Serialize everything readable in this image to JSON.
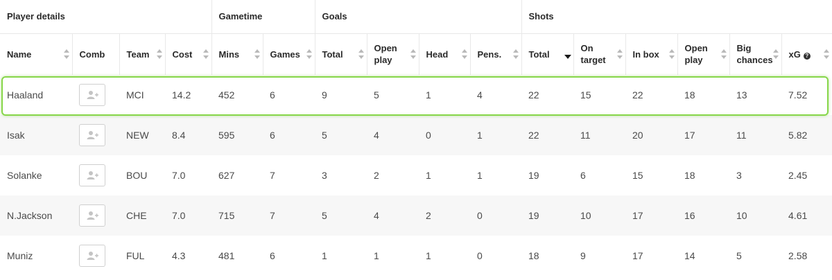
{
  "groups": {
    "player_details": "Player details",
    "gametime": "Gametime",
    "goals": "Goals",
    "shots": "Shots"
  },
  "columns": {
    "name": "Name",
    "comb": "Comb",
    "team": "Team",
    "cost": "Cost",
    "mins": "Mins",
    "games": "Games",
    "goals_total": "Total",
    "goals_open_play_1": "Open",
    "goals_open_play_2": "play",
    "head": "Head",
    "pens": "Pens.",
    "shots_total": "Total",
    "on_target_1": "On",
    "on_target_2": "target",
    "in_box": "In box",
    "shots_open_play_1": "Open",
    "shots_open_play_2": "play",
    "big_chances_1": "Big",
    "big_chances_2": "chances",
    "xg": "xG",
    "xg_help": "?"
  },
  "sorted_column": "shots_total",
  "highlighted_row": "Haaland",
  "icons": {
    "comb_button": "add-user-icon",
    "sort": "sort-arrows-icon",
    "help": "help-circle-icon"
  },
  "colors": {
    "highlight": "#87d64a",
    "stripe": "#f7f7f7"
  },
  "rows": [
    {
      "name": "Haaland",
      "team": "MCI",
      "cost": "14.2",
      "mins": "452",
      "games": "6",
      "goals_total": "9",
      "goals_open_play": "5",
      "head": "1",
      "pens": "4",
      "shots_total": "22",
      "on_target": "15",
      "in_box": "22",
      "shots_open_play": "18",
      "big_chances": "13",
      "xg": "7.52"
    },
    {
      "name": "Isak",
      "team": "NEW",
      "cost": "8.4",
      "mins": "595",
      "games": "6",
      "goals_total": "5",
      "goals_open_play": "4",
      "head": "0",
      "pens": "1",
      "shots_total": "22",
      "on_target": "11",
      "in_box": "20",
      "shots_open_play": "17",
      "big_chances": "11",
      "xg": "5.82"
    },
    {
      "name": "Solanke",
      "team": "BOU",
      "cost": "7.0",
      "mins": "627",
      "games": "7",
      "goals_total": "3",
      "goals_open_play": "2",
      "head": "1",
      "pens": "1",
      "shots_total": "19",
      "on_target": "6",
      "in_box": "15",
      "shots_open_play": "18",
      "big_chances": "3",
      "xg": "2.45"
    },
    {
      "name": "N.Jackson",
      "team": "CHE",
      "cost": "7.0",
      "mins": "715",
      "games": "7",
      "goals_total": "5",
      "goals_open_play": "4",
      "head": "2",
      "pens": "0",
      "shots_total": "19",
      "on_target": "10",
      "in_box": "17",
      "shots_open_play": "16",
      "big_chances": "10",
      "xg": "4.61"
    },
    {
      "name": "Muniz",
      "team": "FUL",
      "cost": "4.3",
      "mins": "481",
      "games": "6",
      "goals_total": "1",
      "goals_open_play": "1",
      "head": "1",
      "pens": "0",
      "shots_total": "18",
      "on_target": "9",
      "in_box": "17",
      "shots_open_play": "14",
      "big_chances": "5",
      "xg": "2.58"
    }
  ]
}
